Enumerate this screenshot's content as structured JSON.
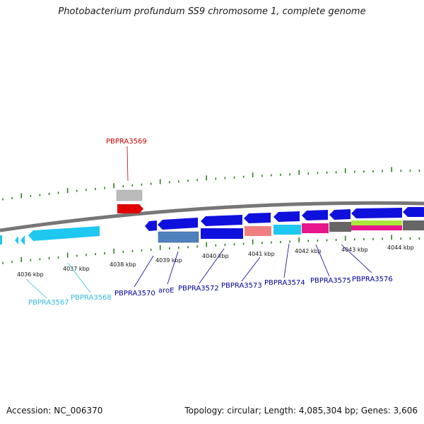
{
  "title": "Photobacterium profundum SS9 chromosome 1, complete genome",
  "footer": {
    "accession": "Accession: NC_006370",
    "summary": "Topology: circular; Length: 4,085,304 bp; Genes: 3,606"
  },
  "colors": {
    "backbone": "#777777",
    "tick": "#2e7d1e",
    "blue_gene": "#1010dd",
    "cyan_gene": "#1ec8f0",
    "red_gene": "#e00000",
    "gray_gene": "#bbbbbb",
    "light_blue_label": "#33bbdd",
    "blue_label": "#000099",
    "red_label": "#cc0000"
  },
  "kbp_labels": [
    "4036 kbp",
    "4037 kbp",
    "4038 kbp",
    "4039 kbp",
    "4040 kbp",
    "4041 kbp",
    "4042 kbp",
    "4043 kbp",
    "4044 kbp"
  ],
  "gene_labels": {
    "PBPRA3567": "PBPRA3567",
    "PBPRA3568": "PBPRA3568",
    "PBPRA3569": "PBPRA3569",
    "PBPRA3570": "PBPRA3570",
    "aroE": "aroE",
    "PBPRA3572": "PBPRA3572",
    "PBPRA3573": "PBPRA3573",
    "PBPRA3574": "PBPRA3574",
    "PBPRA3575": "PBPRA3575",
    "PBPRA3576": "PBPRA3576"
  }
}
